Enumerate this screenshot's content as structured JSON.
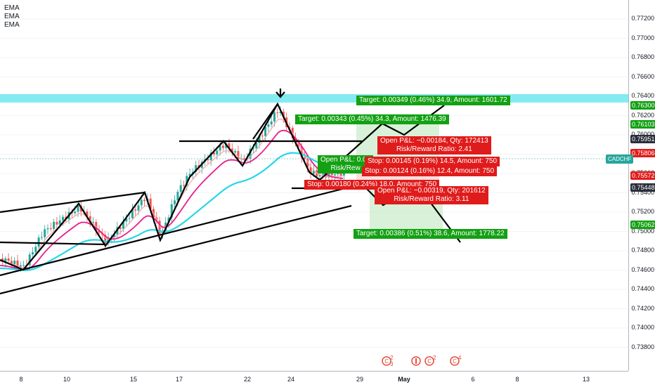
{
  "legend": {
    "items": [
      "EMA",
      "EMA",
      "EMA"
    ]
  },
  "symbol": "CADCHF",
  "price_axis": {
    "labels": [
      "0.77200",
      "0.77000",
      "0.76800",
      "0.76600",
      "0.76400",
      "0.76200",
      "0.76000",
      "0.75800",
      "0.75600",
      "0.75400",
      "0.75200",
      "0.75000",
      "0.74800",
      "0.74600",
      "0.74400",
      "0.74200",
      "0.74000",
      "0.73800"
    ],
    "badges": [
      {
        "text": "0.76300",
        "color": "#13a113",
        "price": 0.763
      },
      {
        "text": "0.76103",
        "color": "#13a113",
        "price": 0.76103
      },
      {
        "text": "0.75951",
        "color": "#2a2e39",
        "price": 0.75951
      },
      {
        "text": "0.75806",
        "color": "#e01b1b",
        "price": 0.75806
      },
      {
        "text": "0.75572",
        "color": "#e01b1b",
        "price": 0.75572
      },
      {
        "text": "0.75448",
        "color": "#2a2e39",
        "price": 0.75448
      },
      {
        "text": "0.75062",
        "color": "#13a113",
        "price": 0.75062
      }
    ]
  },
  "time_axis": {
    "labels": [
      "8",
      "10",
      "15",
      "17",
      "22",
      "24",
      "29",
      "May",
      "6",
      "8",
      "13"
    ]
  },
  "positions": {
    "target_1": "Target: 0.00349 (0.46%) 34.9, Amount: 1601.72",
    "target_2": "Target: 0.00343 (0.45%) 34.3, Amount: 1476.39",
    "open_pl_1a": "Open P&L: −0.00184, Qty: 172413",
    "open_pl_1b": "Risk/Reward Ratio: 2.41",
    "open_pl_2a": "Open P&L: 0.00",
    "open_pl_2b": "Risk/Rew",
    "stop_1": "Stop: 0.00145 (0.19%) 14.5, Amount: 750",
    "stop_2": "Stop: 0.00124 (0.16%) 12.4, Amount: 750",
    "stop_3": "Stop: 0.00180 (0.24%) 18.0, Amount: 750",
    "open_pl_3a": "Open P&L: −0.00319, Qty: 201612",
    "open_pl_3b": "Risk/Reward Ratio: 3.11",
    "target_3": "Target: 0.00386 (0.51%) 38.6, Amount: 1778.22"
  },
  "events": [
    "2 3",
    "2",
    "4"
  ],
  "colors": {
    "up": "#26a69a",
    "down": "#ef5350",
    "ema_fast": "#f8a5a5",
    "ema_mid": "#e91e8c",
    "ema_slow": "#26d7e6",
    "zone": "#6fe7f0"
  }
}
